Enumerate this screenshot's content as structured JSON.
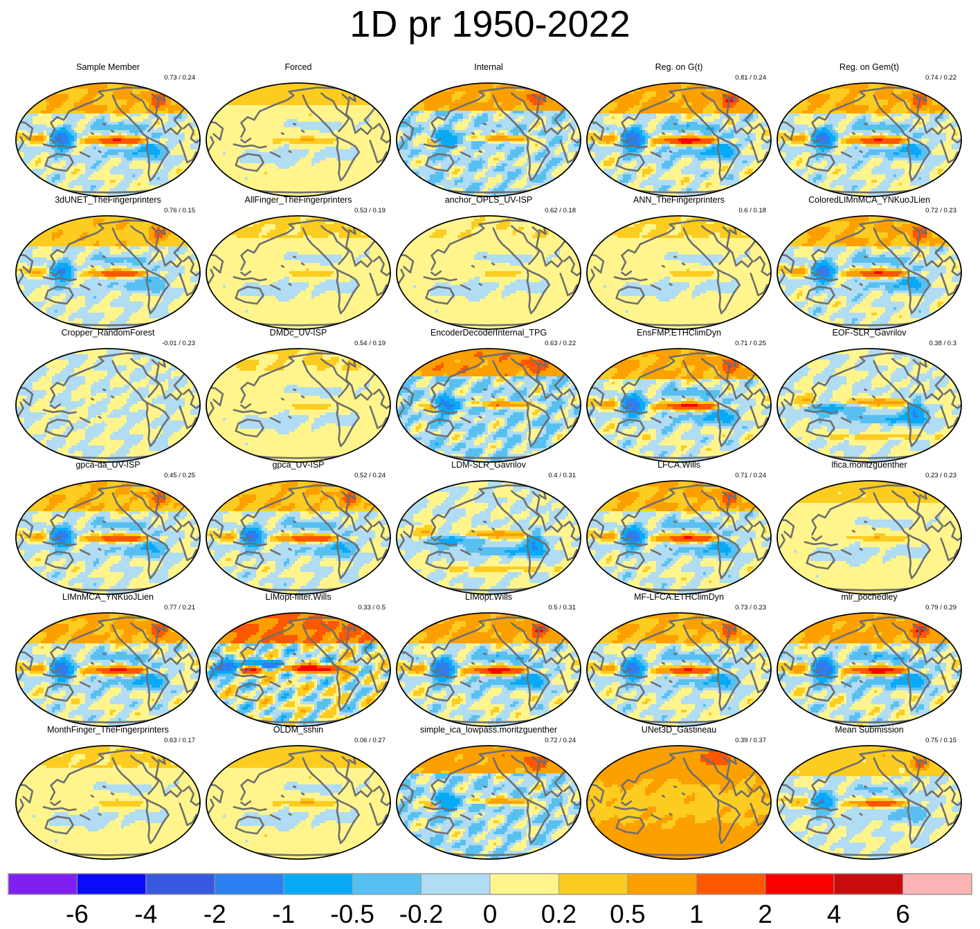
{
  "title": "1D pr 1950-2022",
  "chart_data": {
    "type": "heatmap",
    "title": "1D pr 1950-2022",
    "layout": {
      "rows": 6,
      "cols": 5
    },
    "panels": [
      {
        "name": "Sample Member",
        "stats": "0.73 / 0.24",
        "amp": 1.0,
        "pattern": "enso"
      },
      {
        "name": "Forced",
        "stats": "",
        "amp": 0.7,
        "pattern": "forced"
      },
      {
        "name": "Internal",
        "stats": "",
        "amp": 0.9,
        "pattern": "internal"
      },
      {
        "name": "Reg. on G(t)",
        "stats": "0.81 / 0.24",
        "amp": 1.2,
        "pattern": "enso"
      },
      {
        "name": "Reg. on Gem(t)",
        "stats": "0.74 / 0.22",
        "amp": 1.0,
        "pattern": "enso"
      },
      {
        "name": "3dUNET_TheFingerprinters",
        "stats": "0.76 / 0.15",
        "amp": 0.8,
        "pattern": "enso"
      },
      {
        "name": "AllFinger_TheFingerprinters",
        "stats": "0.53 / 0.19",
        "amp": 0.5,
        "pattern": "forced"
      },
      {
        "name": "anchor_OPLS_UV-ISP",
        "stats": "0.62 / 0.18",
        "amp": 0.4,
        "pattern": "forced"
      },
      {
        "name": "ANN_TheFingerprinters",
        "stats": "0.6 / 0.18",
        "amp": 0.5,
        "pattern": "forced"
      },
      {
        "name": "ColoredLIMnMCA_YNKuoJLien",
        "stats": "0.72 / 0.23",
        "amp": 1.0,
        "pattern": "enso"
      },
      {
        "name": "Cropper_RandomForest",
        "stats": "-0.01 / 0.23",
        "amp": 0.25,
        "pattern": "flat"
      },
      {
        "name": "DMDc_UV-ISP",
        "stats": "0.54 / 0.19",
        "amp": 0.45,
        "pattern": "forced"
      },
      {
        "name": "EncoderDecoderInternal_TPG",
        "stats": "0.63 / 0.22",
        "amp": 1.1,
        "pattern": "internal"
      },
      {
        "name": "EnsFMP.ETHClimDyn",
        "stats": "0.71 / 0.25",
        "amp": 1.1,
        "pattern": "enso"
      },
      {
        "name": "EOF-SLR_Gavrilov",
        "stats": "0.38 / 0.3",
        "amp": 0.9,
        "pattern": "eof"
      },
      {
        "name": "gpca-da_UV-ISP",
        "stats": "0.45 / 0.25",
        "amp": 0.9,
        "pattern": "enso"
      },
      {
        "name": "gpca_UV-ISP",
        "stats": "0.52 / 0.24",
        "amp": 0.9,
        "pattern": "enso"
      },
      {
        "name": "LDM-SLR_Gavrilov",
        "stats": "0.4 / 0.31",
        "amp": 0.9,
        "pattern": "eof"
      },
      {
        "name": "LFCA.Wills",
        "stats": "0.71 / 0.24",
        "amp": 1.0,
        "pattern": "enso"
      },
      {
        "name": "lfica.moritzguenther",
        "stats": "0.23 / 0.23",
        "amp": 0.6,
        "pattern": "forced"
      },
      {
        "name": "LIMnMCA_YNKuoJLien",
        "stats": "0.77 / 0.21",
        "amp": 1.1,
        "pattern": "enso"
      },
      {
        "name": "LIMopt-filter.Wills",
        "stats": "0.33 / 0.5",
        "amp": 1.5,
        "pattern": "strong"
      },
      {
        "name": "LIMopt.Wills",
        "stats": "0.5 / 0.31",
        "amp": 1.2,
        "pattern": "enso"
      },
      {
        "name": "MF-LFCA.ETHClimDyn",
        "stats": "0.73 / 0.23",
        "amp": 1.0,
        "pattern": "enso"
      },
      {
        "name": "mlr_pochedley",
        "stats": "0.79 / 0.29",
        "amp": 1.3,
        "pattern": "enso"
      },
      {
        "name": "MonthFinger_TheFingerprinters",
        "stats": "0.63 / 0.17",
        "amp": 0.5,
        "pattern": "forced"
      },
      {
        "name": "OLDM_sshin",
        "stats": "0.06 / 0.27",
        "amp": 0.7,
        "pattern": "forced"
      },
      {
        "name": "simple_ica_lowpass.moritzguenther",
        "stats": "0.72 / 0.24",
        "amp": 1.0,
        "pattern": "internal"
      },
      {
        "name": "UNet3D_Gastineau",
        "stats": "0.39 / 0.37",
        "amp": 1.0,
        "pattern": "warm"
      },
      {
        "name": "Mean Submission",
        "stats": "0.75 / 0.15",
        "amp": 0.7,
        "pattern": "enso"
      }
    ],
    "colorbar": {
      "colors": [
        "#8020f0",
        "#0a0aff",
        "#3858e0",
        "#2c7ff0",
        "#08aaf8",
        "#58c0f0",
        "#b0dcf4",
        "#fff58c",
        "#fccc20",
        "#fca000",
        "#fc5800",
        "#fc0000",
        "#c80c0c",
        "#fcb4b4"
      ],
      "ticks": [
        "-6",
        "-4",
        "-2",
        "-1",
        "-0.5",
        "-0.2",
        "0",
        "0.2",
        "0.5",
        "1",
        "2",
        "4",
        "6"
      ]
    },
    "levels": [
      -6,
      -4,
      -2,
      -1,
      -0.5,
      -0.2,
      0,
      0.2,
      0.5,
      1,
      2,
      4,
      6
    ],
    "coastline_color": "#6e6e6e",
    "outline_color": "#000000"
  }
}
